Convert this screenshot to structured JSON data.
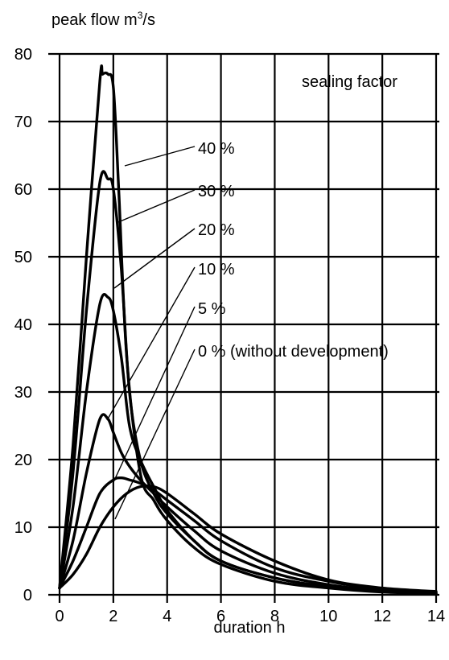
{
  "chart_data": {
    "type": "line",
    "ylabel_main": "peak flow m",
    "ylabel_sup": "3",
    "ylabel_tail": "/s",
    "xlabel": "duration h",
    "legend_title": "sealing factor",
    "xlim": [
      0,
      14
    ],
    "ylim": [
      0,
      80
    ],
    "xticks": [
      0,
      2,
      4,
      6,
      8,
      10,
      12,
      14
    ],
    "yticks": [
      0,
      10,
      20,
      30,
      40,
      50,
      60,
      70,
      80
    ],
    "grid": true,
    "series": [
      {
        "name": "40 %",
        "x": [
          0,
          0.5,
          1.0,
          1.5,
          1.6,
          1.8,
          2.0,
          2.2,
          2.5,
          3.0,
          3.5,
          4.0,
          5.0,
          6.0,
          8.0,
          10.0,
          12.0,
          14.0
        ],
        "y": [
          1,
          22,
          50,
          76,
          77,
          77,
          75,
          60,
          35,
          18,
          14,
          11,
          7,
          4.5,
          2.0,
          1.0,
          0.4,
          0.2
        ]
      },
      {
        "name": "30 %",
        "x": [
          0,
          0.5,
          1.0,
          1.5,
          1.8,
          2.0,
          2.3,
          2.6,
          3.0,
          3.5,
          4.0,
          5.0,
          6.0,
          8.0,
          10.0,
          12.0,
          14.0
        ],
        "y": [
          1,
          18,
          42,
          61,
          61.5,
          60,
          48,
          30,
          20,
          15,
          12,
          8,
          5,
          2.5,
          1.2,
          0.5,
          0.2
        ]
      },
      {
        "name": "20 %",
        "x": [
          0,
          0.5,
          1.0,
          1.5,
          1.8,
          2.0,
          2.3,
          2.6,
          3.0,
          3.5,
          4.0,
          5.0,
          6.0,
          8.0,
          10.0,
          12.0,
          14.0
        ],
        "y": [
          1,
          13,
          30,
          43,
          44,
          42,
          35,
          25,
          20,
          16,
          12.5,
          8,
          5,
          2.5,
          1.2,
          0.5,
          0.2
        ]
      },
      {
        "name": "10 %",
        "x": [
          0,
          0.5,
          1.0,
          1.5,
          1.8,
          2.0,
          2.3,
          2.6,
          3.0,
          3.5,
          4.0,
          5.0,
          6.0,
          8.0,
          10.0,
          12.0,
          14.0
        ],
        "y": [
          1,
          8,
          18,
          26,
          26,
          24,
          21,
          19,
          17,
          15,
          13,
          9.5,
          6.5,
          3.2,
          1.5,
          0.6,
          0.3
        ]
      },
      {
        "name": "5 %",
        "x": [
          0,
          0.5,
          1.0,
          1.5,
          2.0,
          2.3,
          2.6,
          3.0,
          3.5,
          4.0,
          5.0,
          6.0,
          8.0,
          10.0,
          12.0,
          14.0
        ],
        "y": [
          1,
          5,
          10,
          15,
          17,
          17.3,
          17,
          16.5,
          15.5,
          14,
          11,
          8,
          4,
          2,
          0.8,
          0.3
        ]
      },
      {
        "name": "0 % (without development)",
        "x": [
          0,
          0.5,
          1.0,
          1.5,
          2.0,
          2.5,
          3.0,
          3.5,
          4.0,
          5.0,
          6.0,
          8.0,
          10.0,
          12.0,
          14.0
        ],
        "y": [
          1,
          3,
          6,
          10,
          13,
          15,
          16,
          16,
          15,
          12,
          9,
          5,
          2.2,
          1,
          0.5
        ]
      }
    ],
    "labels": [
      "40 %",
      "30 %",
      "20 %",
      "10 %",
      "5 %",
      "0 % (without development)"
    ]
  }
}
